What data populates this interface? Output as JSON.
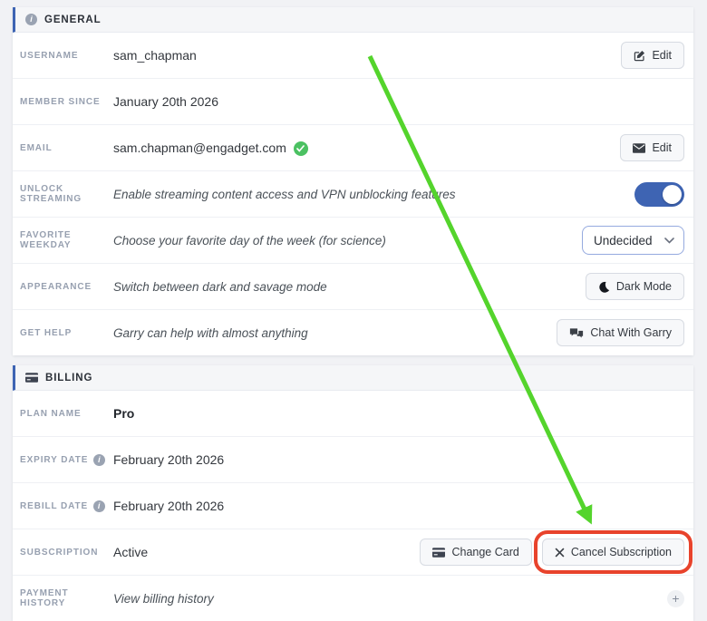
{
  "colors": {
    "accent_blue": "#3e64b3",
    "select_border": "#95aadf",
    "arrow_green": "#54d42c",
    "highlight_red": "#e8432c",
    "success_green": "#4bc162"
  },
  "sections": [
    {
      "id": "general",
      "icon": "info-icon",
      "title": "GENERAL",
      "rows": [
        {
          "label": "USERNAME",
          "value": "sam_chapman",
          "actions": [
            {
              "icon": "edit-pencil-icon",
              "label": "Edit"
            }
          ]
        },
        {
          "label": "MEMBER SINCE",
          "value": "January 20th 2026"
        },
        {
          "label": "EMAIL",
          "value": "sam.chapman@engadget.com",
          "verified": true,
          "actions": [
            {
              "icon": "envelope-icon",
              "label": "Edit"
            }
          ]
        },
        {
          "label": "UNLOCK STREAMING",
          "value": "Enable streaming content access and VPN unblocking features",
          "italic": true,
          "control": {
            "type": "toggle",
            "state": "on"
          }
        },
        {
          "label": "FAVORITE WEEKDAY",
          "value": "Choose your favorite day of the week (for science)",
          "italic": true,
          "control": {
            "type": "select",
            "value": "Undecided"
          }
        },
        {
          "label": "APPEARANCE",
          "value": "Switch between dark and savage mode",
          "italic": true,
          "actions": [
            {
              "icon": "moon-icon",
              "label": "Dark Mode"
            }
          ]
        },
        {
          "label": "GET HELP",
          "value": "Garry can help with almost anything",
          "italic": true,
          "actions": [
            {
              "icon": "chat-icon",
              "label": "Chat With Garry"
            }
          ]
        }
      ]
    },
    {
      "id": "billing",
      "icon": "credit-card-icon",
      "title": "BILLING",
      "rows": [
        {
          "label": "PLAN NAME",
          "value": "Pro",
          "bold": true
        },
        {
          "label": "EXPIRY DATE",
          "label_info": true,
          "value": "February 20th 2026"
        },
        {
          "label": "REBILL DATE",
          "label_info": true,
          "value": "February 20th 2026"
        },
        {
          "label": "SUBSCRIPTION",
          "value": "Active",
          "actions": [
            {
              "icon": "credit-card-icon",
              "label": "Change Card"
            },
            {
              "icon": "x-icon",
              "label": "Cancel Subscription",
              "highlighted": true
            }
          ]
        },
        {
          "label": "PAYMENT HISTORY",
          "value": "View billing history",
          "italic": true,
          "actions": [
            {
              "icon": "plus-icon",
              "label": "",
              "round": true
            }
          ]
        }
      ]
    }
  ],
  "annotations": {
    "arrow": {
      "description": "green arrow pointing to Cancel Subscription button"
    },
    "highlight": {
      "description": "red box around Cancel Subscription button"
    }
  }
}
